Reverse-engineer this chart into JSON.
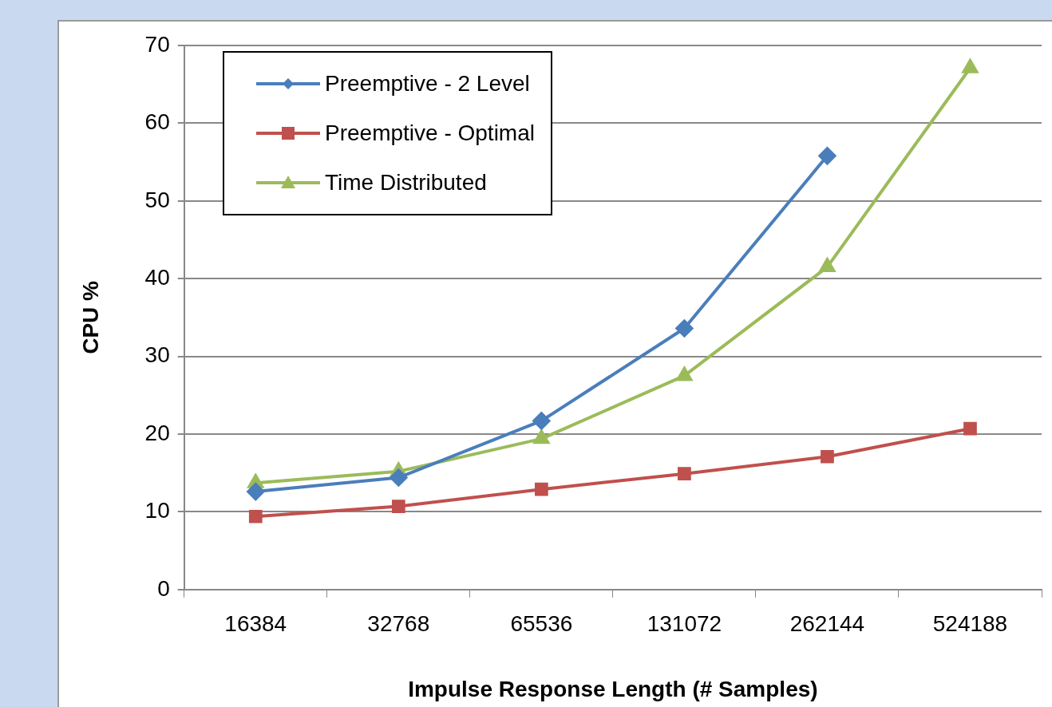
{
  "chart_data": {
    "type": "line",
    "xlabel": "Impulse Response Length (# Samples)",
    "ylabel": "CPU %",
    "categories": [
      "16384",
      "32768",
      "65536",
      "131072",
      "262144",
      "524188"
    ],
    "series": [
      {
        "name": "Preemptive - 2 Level",
        "color": "#4a7ebb",
        "marker": "diamond",
        "values": [
          12.6,
          14.4,
          21.7,
          33.6,
          55.8,
          null
        ]
      },
      {
        "name": "Preemptive - Optimal",
        "color": "#c0504d",
        "marker": "square",
        "values": [
          9.4,
          10.7,
          12.9,
          14.9,
          17.1,
          20.7
        ]
      },
      {
        "name": "Time Distributed",
        "color": "#9bbb59",
        "marker": "triangle",
        "values": [
          13.7,
          15.2,
          19.4,
          27.5,
          41.5,
          67.1
        ]
      }
    ],
    "ylim": [
      0,
      70
    ],
    "yticks": [
      0,
      10,
      20,
      30,
      40,
      50,
      60,
      70
    ],
    "grid": "y",
    "legend": "top left",
    "line_style": "solid"
  }
}
